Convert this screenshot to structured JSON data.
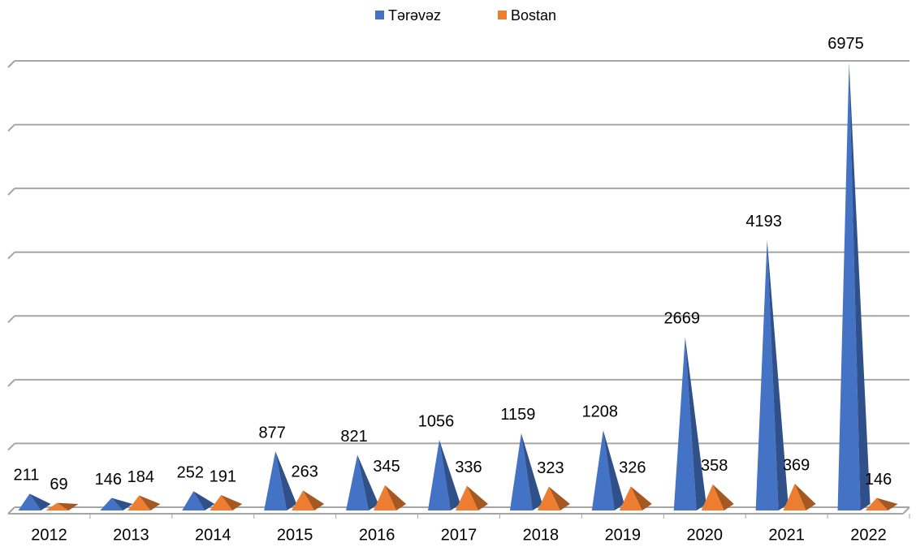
{
  "chart_data": {
    "type": "pyramid",
    "categories": [
      "2012",
      "2013",
      "2014",
      "2015",
      "2016",
      "2017",
      "2018",
      "2019",
      "2020",
      "2021",
      "2022"
    ],
    "series": [
      {
        "name": "Tərəvəz",
        "color": "#4472c4",
        "values": [
          211,
          146,
          252,
          877,
          821,
          1056,
          1159,
          1208,
          2669,
          4193,
          6975
        ]
      },
      {
        "name": "Bostan",
        "color": "#ed7d31",
        "values": [
          69,
          184,
          191,
          263,
          345,
          336,
          323,
          326,
          358,
          369,
          146
        ]
      }
    ],
    "ylim": [
      0,
      7000
    ],
    "yticks": [
      0,
      1000,
      2000,
      3000,
      4000,
      5000,
      6000,
      7000
    ],
    "grid": true,
    "legend": "top"
  }
}
